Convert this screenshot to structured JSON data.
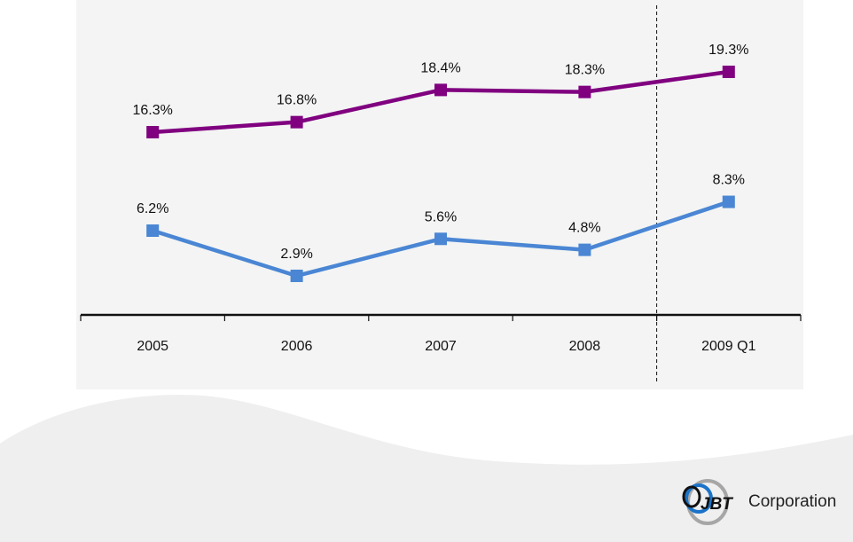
{
  "chart_data": {
    "type": "line",
    "title": "",
    "xlabel": "",
    "ylabel": "",
    "categories": [
      "2005",
      "2006",
      "2007",
      "2008",
      "2009 Q1"
    ],
    "series": [
      {
        "name": "Series A (purple)",
        "color": "#800080",
        "values": [
          16.3,
          16.8,
          18.4,
          18.3,
          19.3
        ],
        "labels": [
          "16.3%",
          "16.8%",
          "18.4%",
          "18.3%",
          "19.3%"
        ]
      },
      {
        "name": "Series B (blue)",
        "color": "#4a86d4",
        "values": [
          6.2,
          2.9,
          5.6,
          4.8,
          8.3
        ],
        "labels": [
          "6.2%",
          "2.9%",
          "5.6%",
          "4.8%",
          "8.3%"
        ]
      }
    ],
    "grid": false,
    "legend": "none",
    "annotations": [
      "dashed vertical separator between 2008 and 2009 Q1"
    ]
  },
  "branding": {
    "company": "Corporation",
    "logo_mark": "JBT",
    "logo_colors": {
      "blue": "#1a73c9",
      "gray": "#9a9a9a",
      "black": "#111111"
    }
  },
  "colors": {
    "panel_bg": "#f3f4f3",
    "swoosh": "#efefef"
  }
}
